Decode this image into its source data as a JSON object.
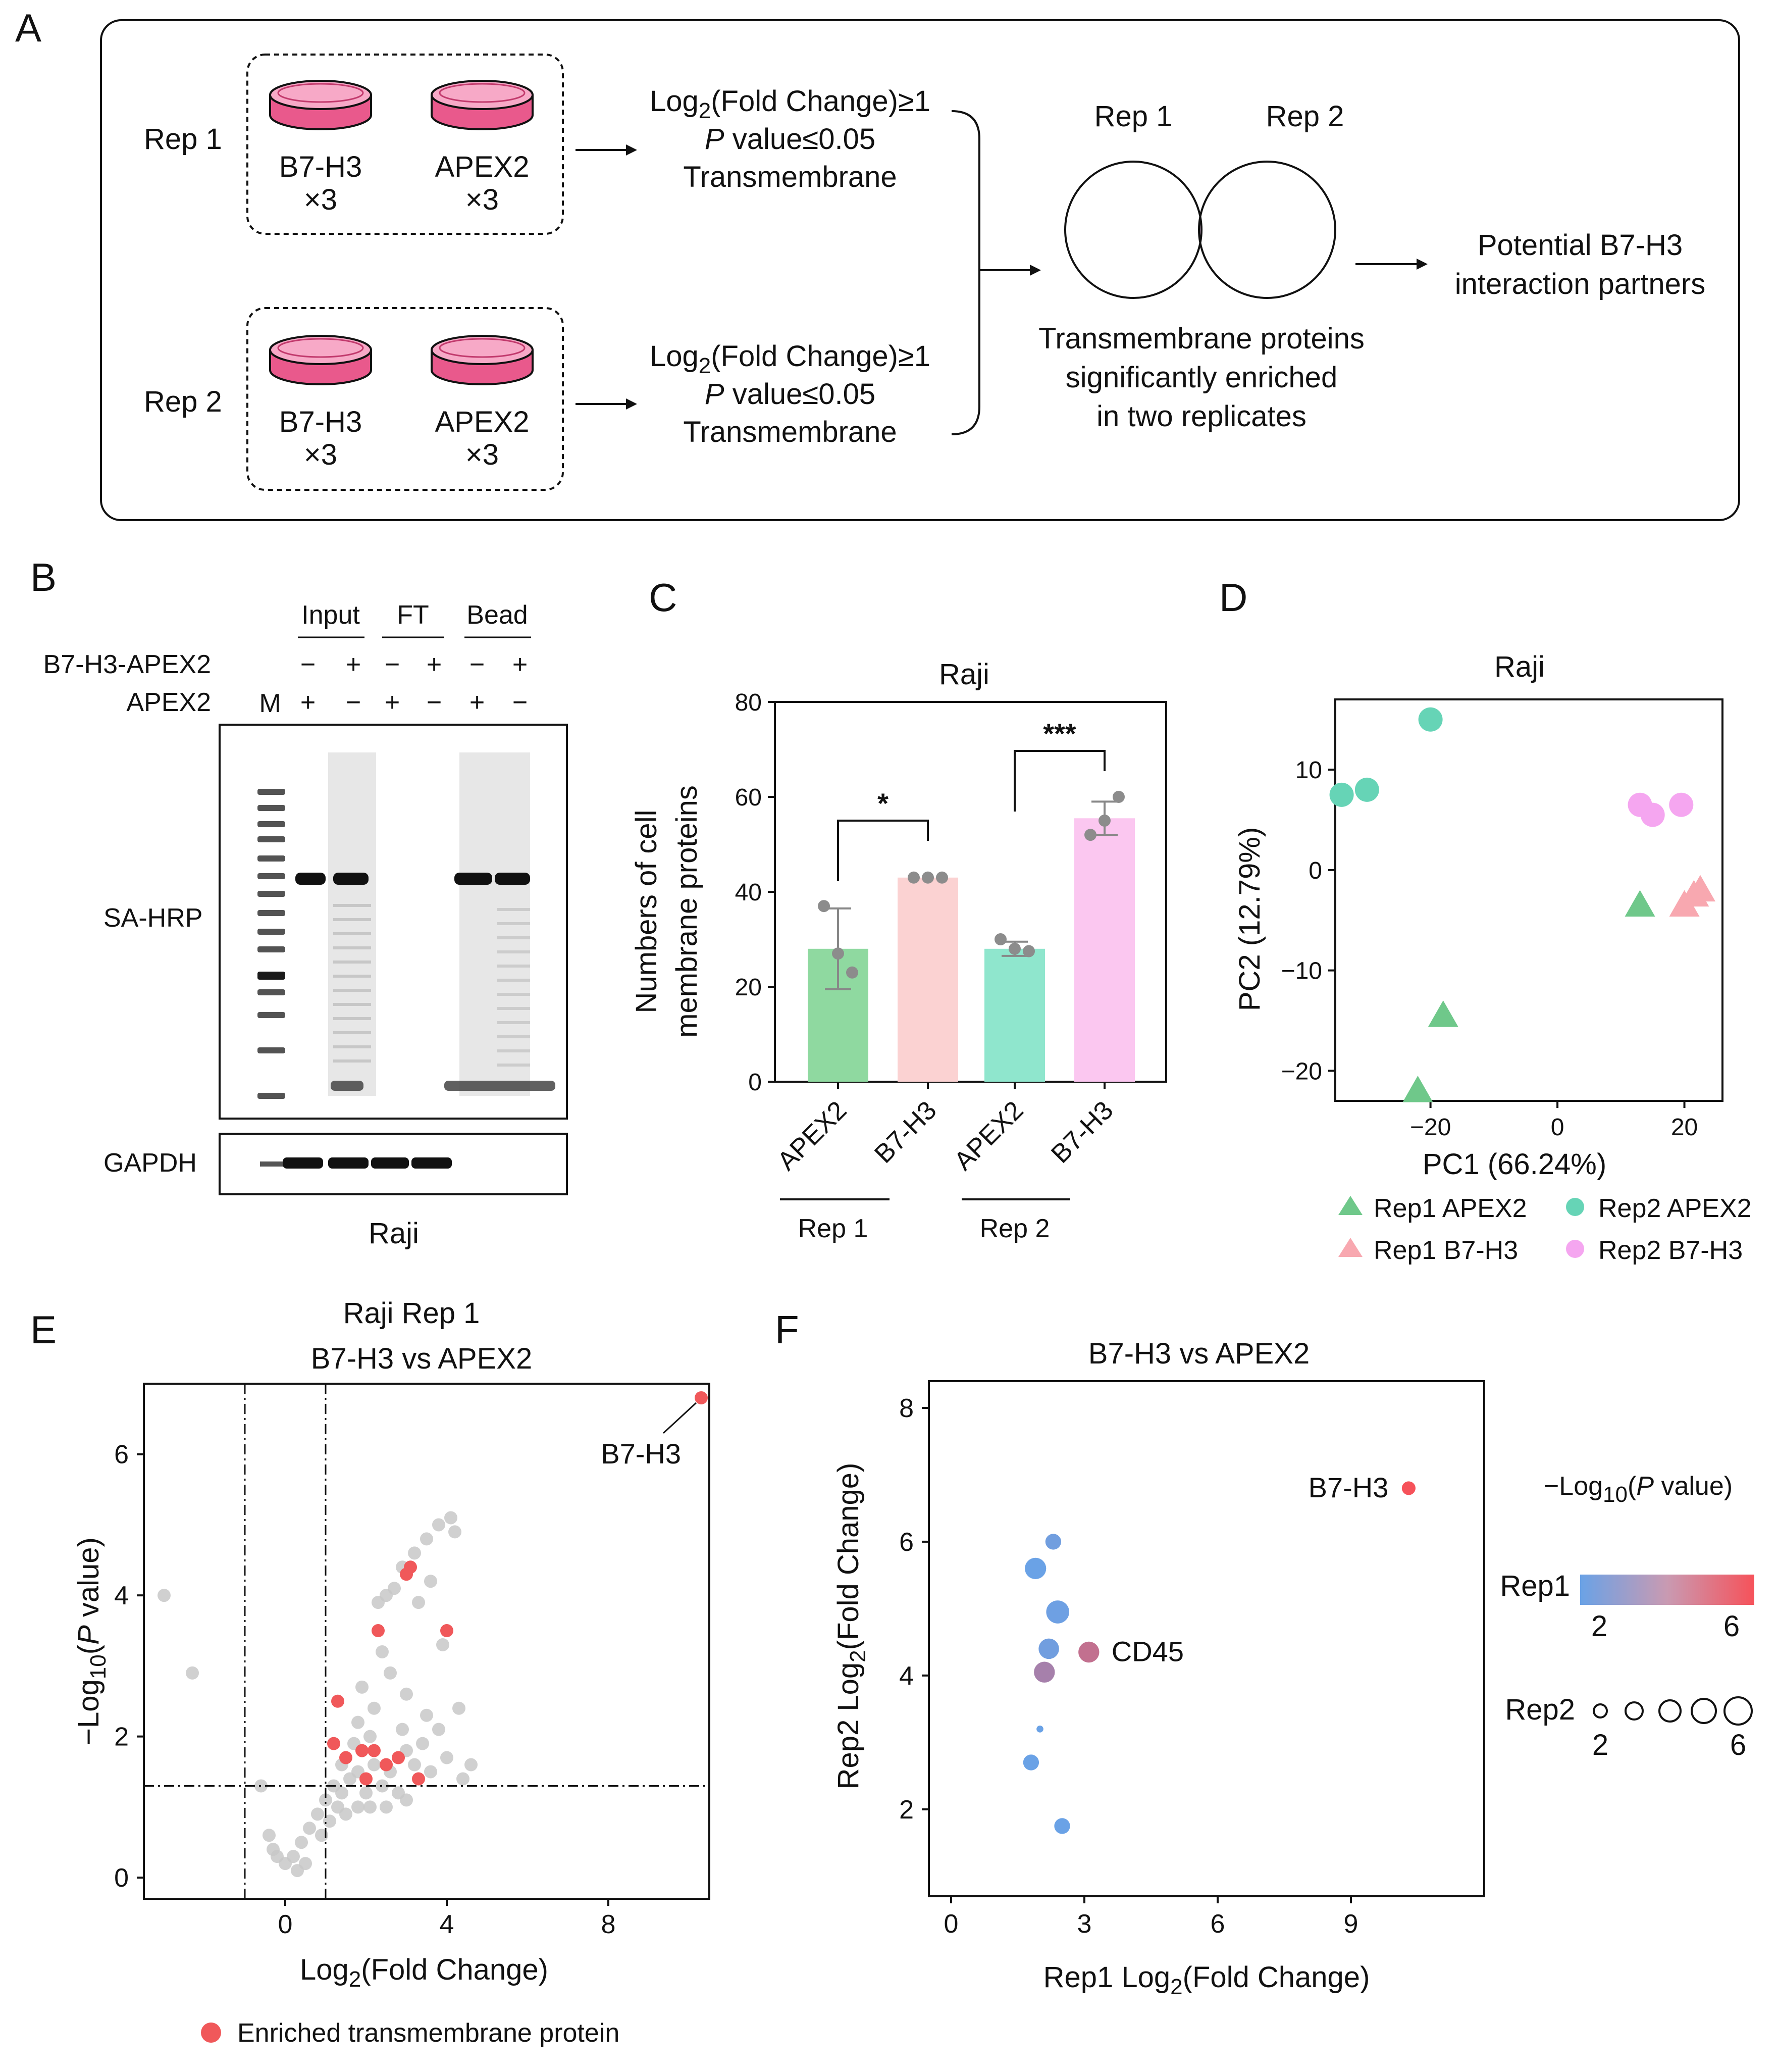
{
  "panel_labels": {
    "a": "A",
    "b": "B",
    "c": "C",
    "d": "D",
    "e": "E",
    "f": "F"
  },
  "panelA": {
    "rep1": "Rep 1",
    "rep2": "Rep 2",
    "dish1": "B7-H3",
    "dish2": "APEX2",
    "times": "×3",
    "crit_fc_pre": "Log",
    "crit_fc_sub": "2",
    "crit_fc_post": "(Fold Change)≥1",
    "crit_p_italic": "P",
    "crit_p_rest": " value≤0.05",
    "crit_tm": "Transmembrane",
    "venn_rep1": "Rep 1",
    "venn_rep2": "Rep 2",
    "venn_caption": [
      "Transmembrane proteins",
      "significantly enriched",
      "in two replicates"
    ],
    "result": [
      "Potential B7-H3",
      "interaction partners"
    ],
    "colors": {
      "dish": "#e9598c",
      "dish_light": "#f7a9c7",
      "venn_overlap": "#d6b3d6"
    }
  },
  "panelB": {
    "groups": [
      "Input",
      "FT",
      "Bead"
    ],
    "row1_label": "B7-H3-APEX2",
    "row2_label": "APEX2",
    "marker": "M",
    "row1_signs": [
      "−",
      "+",
      "−",
      "+",
      "−",
      "+"
    ],
    "row2_signs": [
      "+",
      "−",
      "+",
      "−",
      "+",
      "−"
    ],
    "blot1_label": "SA-HRP",
    "blot2_label": "GAPDH",
    "cell": "Raji"
  },
  "panelC": {
    "chart_data": {
      "type": "bar",
      "title": "Raji",
      "ylabel": [
        "Numbers of cell",
        "membrane proteins"
      ],
      "categories": [
        "APEX2",
        "B7-H3",
        "APEX2",
        "B7-H3"
      ],
      "groups": [
        "Rep 1",
        "Rep 2"
      ],
      "values": [
        28,
        43,
        28,
        55.5
      ],
      "errors": [
        8.5,
        0,
        1.5,
        3.5
      ],
      "points": [
        [
          37,
          27,
          23
        ],
        [
          43,
          43,
          43
        ],
        [
          30,
          28,
          27.5
        ],
        [
          52,
          55,
          60
        ]
      ],
      "bar_colors": [
        "#8fd9a0",
        "#fbd2d2",
        "#8fe6cd",
        "#fbc7f0"
      ],
      "ylim": [
        0,
        80
      ],
      "yticks": [
        0,
        20,
        40,
        60,
        80
      ],
      "significance": [
        "*",
        "***"
      ]
    }
  },
  "panelD": {
    "chart_data": {
      "type": "scatter",
      "title": "Raji",
      "xlabel": "PC1 (66.24%)",
      "ylabel": "PC2 (12.79%)",
      "xlim": [
        -35,
        26
      ],
      "ylim": [
        -23,
        17
      ],
      "xticks": [
        -20,
        0,
        20
      ],
      "yticks": [
        -20,
        -10,
        0,
        10
      ],
      "series": [
        {
          "name": "Rep1 APEX2",
          "marker": "triangle",
          "color": "#6fc88a",
          "points": [
            [
              13,
              -3.5
            ],
            [
              -18,
              -14.5
            ],
            [
              -22,
              -22
            ]
          ]
        },
        {
          "name": "Rep1 B7-H3",
          "marker": "triangle",
          "color": "#f8a8b0",
          "points": [
            [
              20,
              -3.5
            ],
            [
              21.5,
              -2.5
            ],
            [
              22.5,
              -2
            ]
          ]
        },
        {
          "name": "Rep2 APEX2",
          "marker": "circle",
          "color": "#66d4b6",
          "points": [
            [
              -20,
              15
            ],
            [
              -34,
              7.5
            ],
            [
              -30,
              8
            ]
          ]
        },
        {
          "name": "Rep2 B7-H3",
          "marker": "circle",
          "color": "#f5a6f0",
          "points": [
            [
              13,
              6.5
            ],
            [
              15,
              5.5
            ],
            [
              19.5,
              6.5
            ]
          ]
        }
      ]
    }
  },
  "panelE": {
    "chart_data": {
      "type": "scatter",
      "title": [
        "Raji Rep 1",
        "B7-H3 vs APEX2"
      ],
      "xlabel_pre": "Log",
      "xlabel_sub": "2",
      "xlabel_post": "(Fold Change)",
      "ylabel_pre": "−Log",
      "ylabel_sub": "10",
      "ylabel_mid": "(",
      "ylabel_italic": "P",
      "ylabel_post": " value)",
      "xlim": [
        -3.5,
        10.5
      ],
      "ylim": [
        -0.3,
        7.0
      ],
      "xticks": [
        0,
        4,
        8
      ],
      "yticks": [
        0,
        2,
        4,
        6
      ],
      "vlines": [
        -1,
        1
      ],
      "hline": 1.3,
      "annotation": {
        "label": "B7-H3",
        "point": [
          10.3,
          6.8
        ]
      },
      "enriched_points": [
        [
          10.3,
          6.8
        ],
        [
          3.0,
          4.3
        ],
        [
          3.1,
          4.4
        ],
        [
          2.3,
          3.5
        ],
        [
          4.0,
          3.5
        ],
        [
          1.3,
          2.5
        ],
        [
          1.2,
          1.9
        ],
        [
          1.5,
          1.7
        ],
        [
          1.9,
          1.8
        ],
        [
          2.2,
          1.8
        ],
        [
          2.5,
          1.6
        ],
        [
          2.8,
          1.7
        ],
        [
          3.3,
          1.4
        ],
        [
          2.0,
          1.4
        ]
      ],
      "background_points": [
        [
          -3.0,
          4.0
        ],
        [
          -2.3,
          2.9
        ],
        [
          -0.6,
          1.3
        ],
        [
          -0.4,
          0.6
        ],
        [
          -0.3,
          0.4
        ],
        [
          -0.2,
          0.3
        ],
        [
          0,
          0.2
        ],
        [
          0.2,
          0.3
        ],
        [
          0.4,
          0.5
        ],
        [
          0.6,
          0.7
        ],
        [
          0.8,
          0.9
        ],
        [
          1.0,
          1.1
        ],
        [
          1.2,
          1.3
        ],
        [
          1.4,
          1.2
        ],
        [
          1.6,
          1.4
        ],
        [
          1.8,
          1.5
        ],
        [
          2.0,
          1.2
        ],
        [
          2.2,
          1.6
        ],
        [
          2.4,
          1.3
        ],
        [
          2.6,
          1.5
        ],
        [
          2.8,
          1.2
        ],
        [
          3.0,
          1.8
        ],
        [
          3.2,
          1.6
        ],
        [
          3.4,
          1.9
        ],
        [
          3.6,
          1.5
        ],
        [
          3.8,
          2.1
        ],
        [
          4.0,
          1.7
        ],
        [
          4.4,
          1.4
        ],
        [
          4.6,
          1.6
        ],
        [
          1.5,
          0.9
        ],
        [
          1.8,
          1.0
        ],
        [
          2.1,
          1.0
        ],
        [
          2.5,
          1.0
        ],
        [
          3.0,
          1.1
        ],
        [
          0.9,
          0.6
        ],
        [
          1.1,
          0.8
        ],
        [
          0.3,
          0.1
        ],
        [
          0.5,
          0.2
        ],
        [
          1.3,
          1.0
        ],
        [
          2.3,
          3.9
        ],
        [
          2.5,
          4.0
        ],
        [
          2.7,
          4.1
        ],
        [
          2.9,
          4.4
        ],
        [
          3.2,
          4.6
        ],
        [
          3.5,
          4.8
        ],
        [
          3.8,
          5.0
        ],
        [
          4.1,
          5.1
        ],
        [
          4.2,
          4.9
        ],
        [
          3.6,
          4.2
        ],
        [
          3.3,
          3.9
        ],
        [
          2.4,
          3.2
        ],
        [
          1.9,
          2.7
        ],
        [
          2.2,
          2.4
        ],
        [
          1.8,
          2.2
        ],
        [
          2.6,
          2.9
        ],
        [
          3.0,
          2.6
        ],
        [
          3.5,
          2.3
        ],
        [
          4.3,
          2.4
        ],
        [
          1.4,
          1.6
        ],
        [
          1.7,
          1.9
        ],
        [
          2.9,
          2.1
        ],
        [
          3.9,
          3.3
        ],
        [
          2.1,
          2.0
        ]
      ]
    },
    "legend": "Enriched transmembrane protein",
    "enriched_color": "#f0585a"
  },
  "panelF": {
    "chart_data": {
      "type": "scatter",
      "title": "B7-H3 vs APEX2",
      "xlabel_pre": "Rep1  Log",
      "xlabel_sub": "2",
      "xlabel_post": "(Fold Change)",
      "ylabel_pre": "Rep2  Log",
      "ylabel_sub": "2",
      "ylabel_post": "(Fold Change)",
      "xlim": [
        -0.5,
        12
      ],
      "ylim": [
        0.7,
        8.4
      ],
      "xticks": [
        0,
        3,
        6,
        9
      ],
      "yticks": [
        2,
        4,
        6,
        8
      ],
      "points": [
        {
          "x": 10.3,
          "y": 6.8,
          "rep1": 6.8,
          "rep2": 2.8,
          "label": "B7-H3"
        },
        {
          "x": 2.3,
          "y": 6.0,
          "rep1": 2.2,
          "rep2": 3.3
        },
        {
          "x": 1.9,
          "y": 5.6,
          "rep1": 2.0,
          "rep2": 4.6
        },
        {
          "x": 2.4,
          "y": 4.95,
          "rep1": 2.1,
          "rep2": 5.0
        },
        {
          "x": 2.2,
          "y": 4.4,
          "rep1": 2.2,
          "rep2": 4.4
        },
        {
          "x": 3.1,
          "y": 4.35,
          "rep1": 4.5,
          "rep2": 4.5,
          "label": "CD45"
        },
        {
          "x": 2.1,
          "y": 4.05,
          "rep1": 3.7,
          "rep2": 4.5
        },
        {
          "x": 2.0,
          "y": 3.2,
          "rep1": 1.6,
          "rep2": 1.2
        },
        {
          "x": 1.8,
          "y": 2.7,
          "rep1": 2.0,
          "rep2": 3.3
        },
        {
          "x": 2.5,
          "y": 1.75,
          "rep1": 2.0,
          "rep2": 3.3
        }
      ],
      "colorbar": {
        "label": "Rep1",
        "min_label": "2",
        "max_label": "6",
        "colors": [
          "#6aa2e6",
          "#f6525a"
        ]
      },
      "sizelegend": {
        "label": "Rep2",
        "min_label": "2",
        "max_label": "6"
      },
      "legend_title_pre": "−Log",
      "legend_title_sub": "10",
      "legend_title_mid": "(",
      "legend_title_italic": "P",
      "legend_title_post": " value)"
    }
  }
}
